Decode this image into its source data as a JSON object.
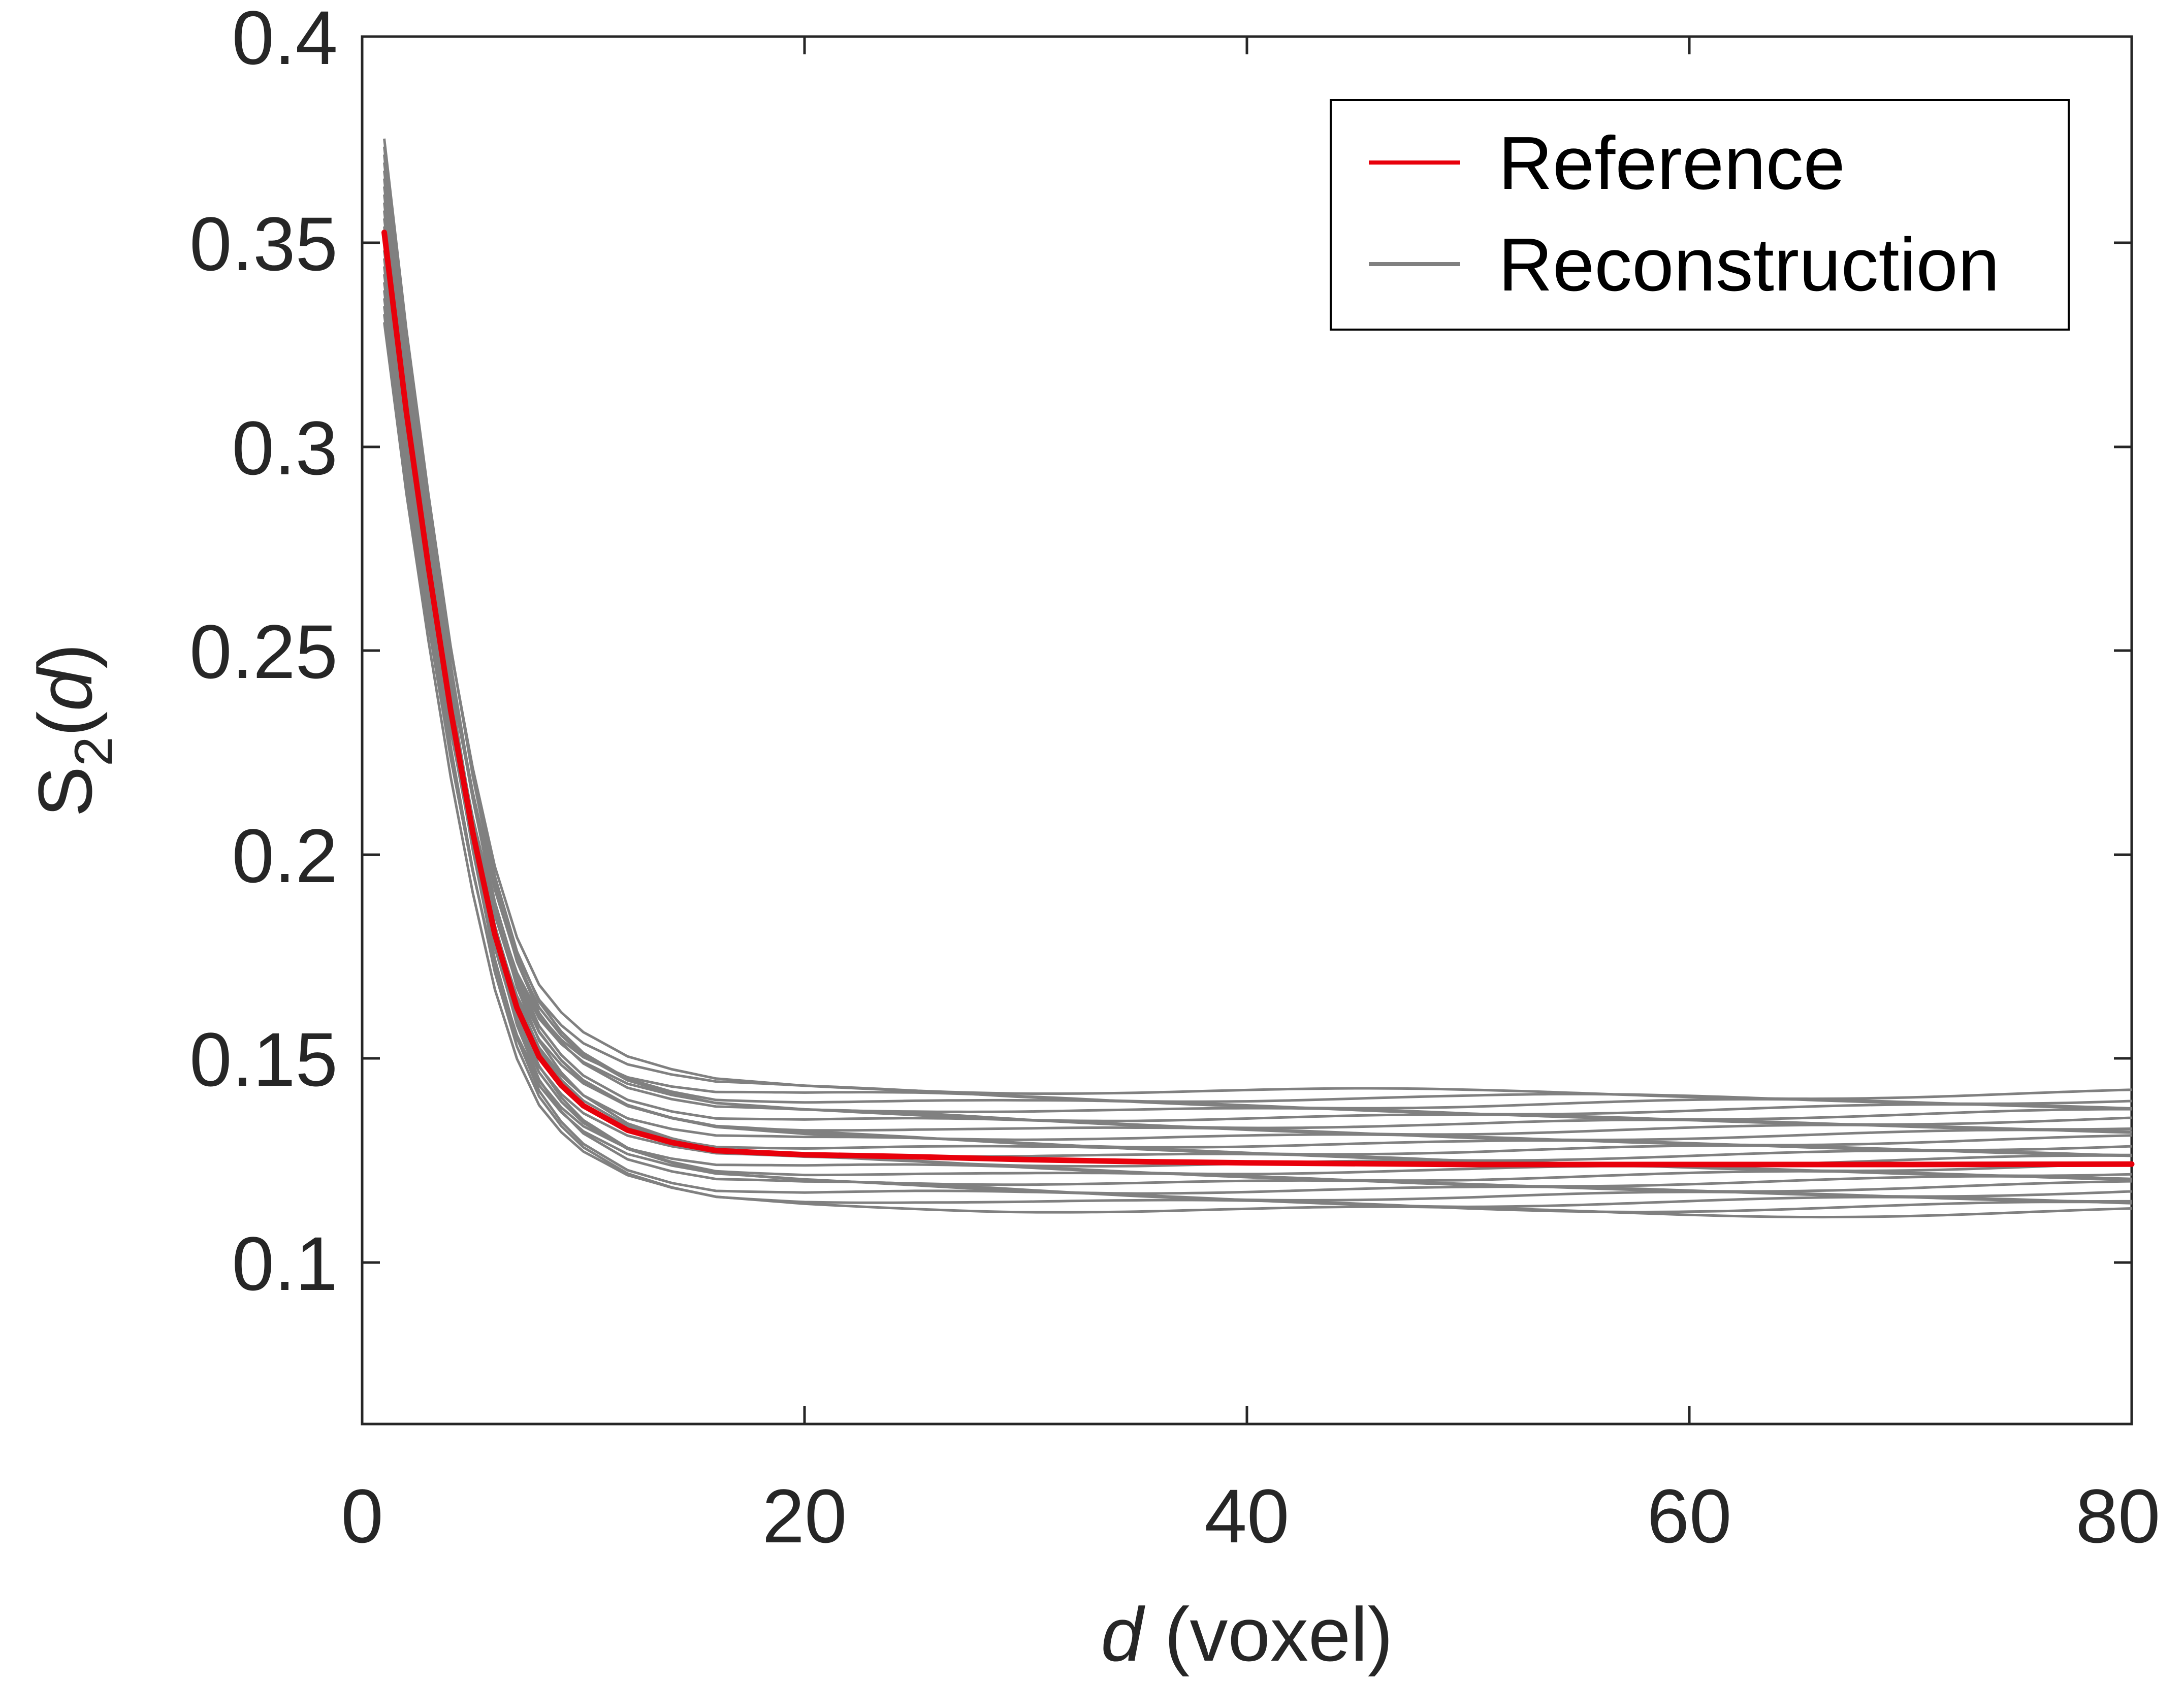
{
  "chart_data": {
    "type": "line",
    "title": "",
    "xlabel": {
      "italic": "d",
      "rest": " (voxel)"
    },
    "ylabel": {
      "base": "S",
      "sub": "2",
      "open": "(",
      "italic": "d",
      "close": ")"
    },
    "xlim": [
      0,
      80
    ],
    "ylim": [
      0.06,
      0.4
    ],
    "xticks": [
      0,
      20,
      40,
      60,
      80
    ],
    "xtick_labels": [
      "0",
      "20",
      "40",
      "60",
      "80"
    ],
    "yticks": [
      0.1,
      0.15,
      0.2,
      0.25,
      0.3,
      0.35,
      0.4
    ],
    "ytick_labels": [
      "0.1",
      "0.15",
      "0.2",
      "0.25",
      "0.3",
      "0.35",
      "0.4"
    ],
    "grid": false,
    "legend": {
      "position": "top-right",
      "entries": [
        "Reference",
        "Reconstruction"
      ]
    },
    "colors": {
      "reference": "#e8000b",
      "reconstruction": "#808080",
      "axis": "#262626"
    },
    "reference": {
      "name": "Reference",
      "x": [
        1,
        2,
        3,
        4,
        5,
        6,
        7,
        8,
        9,
        10,
        12,
        14,
        16,
        18,
        20,
        25,
        30,
        35,
        40,
        50,
        60,
        70,
        80
      ],
      "y": [
        0.352,
        0.308,
        0.27,
        0.235,
        0.205,
        0.18,
        0.162,
        0.15,
        0.143,
        0.138,
        0.132,
        0.129,
        0.127,
        0.1265,
        0.126,
        0.1255,
        0.1248,
        0.1243,
        0.124,
        0.1236,
        0.1236,
        0.1236,
        0.1237
      ]
    },
    "reconstructions": {
      "name": "Reconstruction",
      "count": 24,
      "d0_min": 0.33,
      "d0_max": 0.375,
      "plateau_min": 0.112,
      "plateau_max": 0.141
    }
  }
}
